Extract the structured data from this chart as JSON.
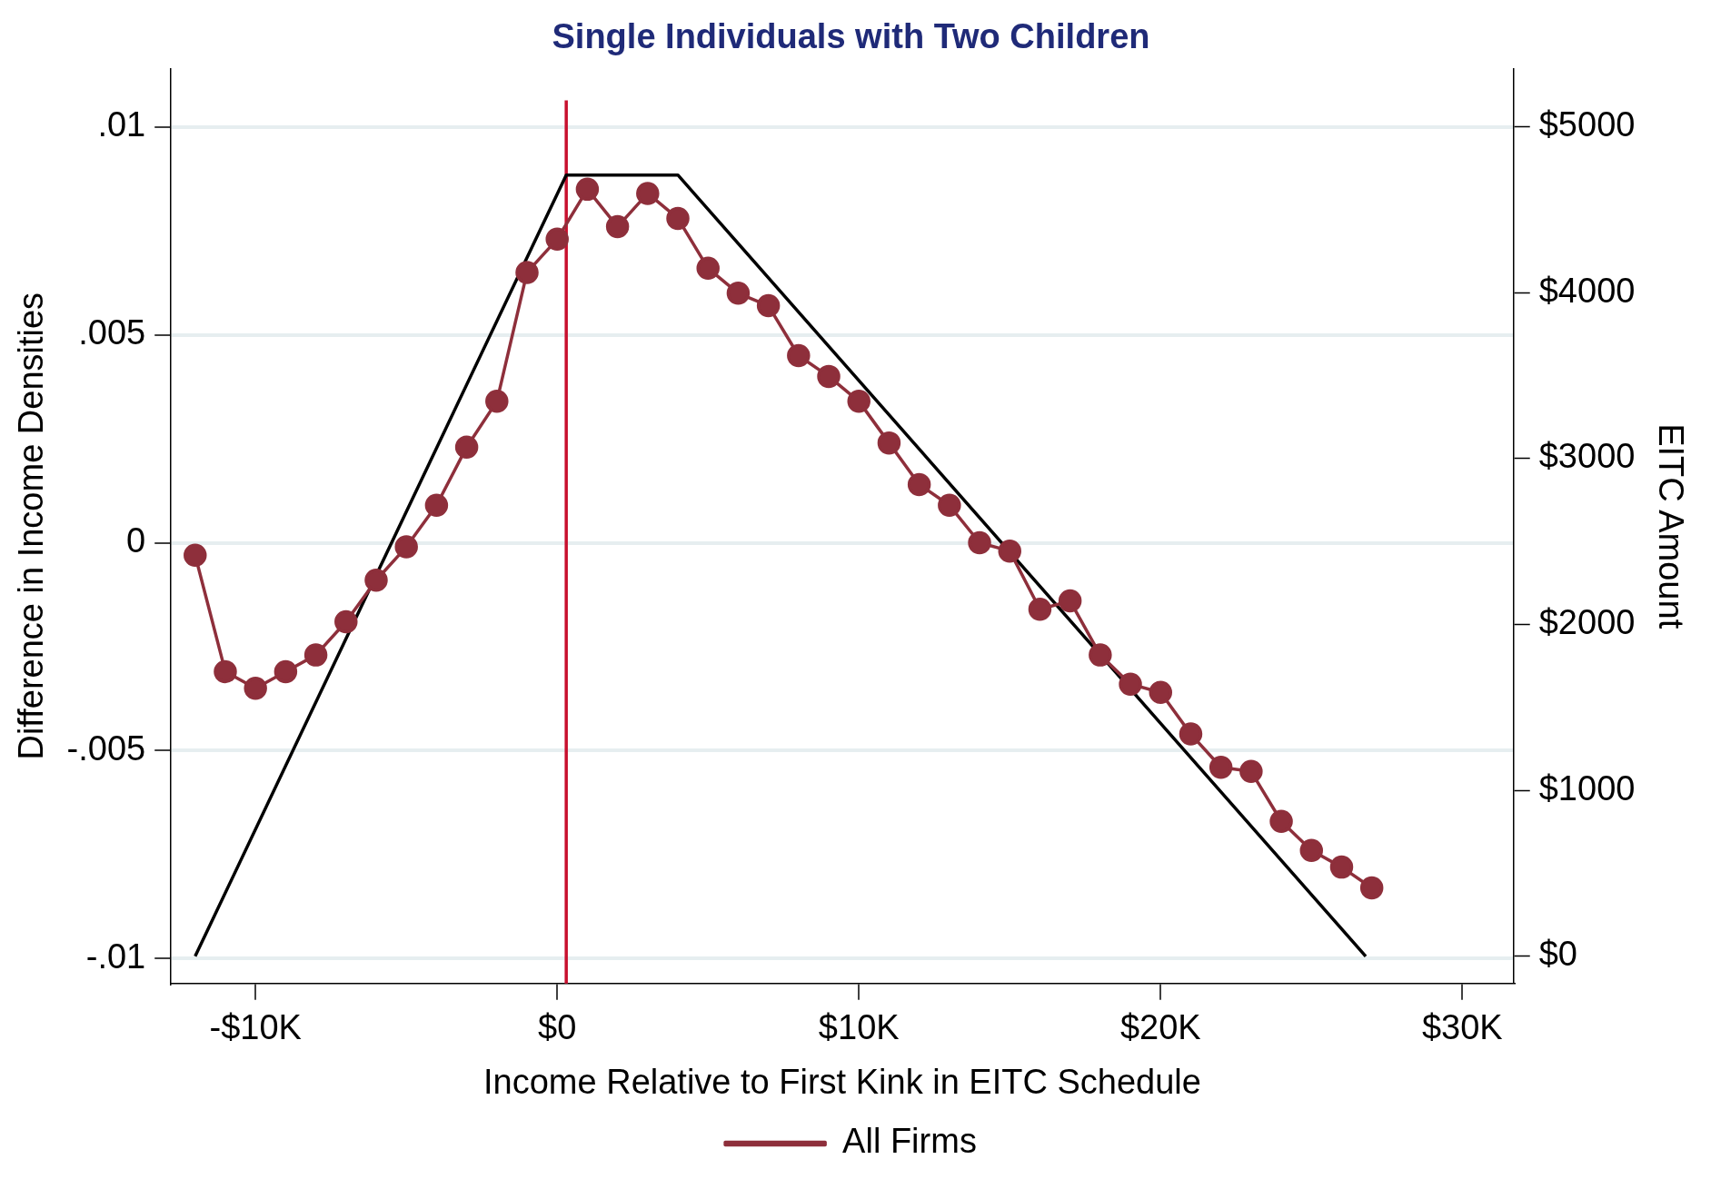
{
  "chart_data": {
    "type": "line",
    "title": "Single Individuals with Two Children",
    "xlabel": "Income Relative to First Kink in EITC Schedule",
    "ylabel": "Difference in Income Densities",
    "y2label": "EITC Amount",
    "xlim": [
      -12800,
      31700
    ],
    "xticks": [
      {
        "value": -10000,
        "label": "-$10K"
      },
      {
        "value": 0,
        "label": "$0"
      },
      {
        "value": 10000,
        "label": "$10K"
      },
      {
        "value": 20000,
        "label": "$20K"
      },
      {
        "value": 30000,
        "label": "$30K"
      }
    ],
    "ylim": [
      -0.0106,
      0.0114
    ],
    "yticks": [
      {
        "value": -0.01,
        "label": "-.01"
      },
      {
        "value": -0.005,
        "label": "-.005"
      },
      0,
      {
        "value": 0.005,
        "label": ".005"
      },
      {
        "value": 0.01,
        "label": ".01"
      }
    ],
    "y2lim": [
      -164,
      5351
    ],
    "y2ticks": [
      {
        "value": 0,
        "label": "$0"
      },
      {
        "value": 1000,
        "label": "$1000"
      },
      {
        "value": 2000,
        "label": "$2000"
      },
      {
        "value": 3000,
        "label": "$3000"
      },
      {
        "value": 4000,
        "label": "$4000"
      },
      {
        "value": 5000,
        "label": "$5000"
      }
    ],
    "series": [
      {
        "name": "All Firms",
        "color": "#8e2f3b",
        "marker": "circle",
        "x": [
          -12000,
          -11000,
          -10000,
          -9000,
          -8000,
          -7000,
          -6000,
          -5000,
          -4000,
          -3000,
          -2000,
          -1000,
          0,
          1000,
          2000,
          3000,
          4000,
          5000,
          6000,
          7000,
          8000,
          9000,
          10000,
          11000,
          12000,
          13000,
          14000,
          15000,
          16000,
          17000,
          18000,
          19000,
          20000,
          21000,
          22000,
          23000,
          24000,
          25000,
          26000,
          27000
        ],
        "values": [
          -0.0003,
          -0.0031,
          -0.0035,
          -0.0031,
          -0.0027,
          -0.0019,
          -0.0009,
          -0.0001,
          0.0009,
          0.0023,
          0.0034,
          0.0065,
          0.0073,
          0.0085,
          0.0076,
          0.0084,
          0.0078,
          0.0066,
          0.006,
          0.0057,
          0.0045,
          0.004,
          0.0034,
          0.0024,
          0.0014,
          0.0009,
          0,
          -0.0002,
          -0.0016,
          -0.0014,
          -0.0027,
          -0.0034,
          -0.0036,
          -0.0046,
          -0.0054,
          -0.0055,
          -0.0067,
          -0.0074,
          -0.0078,
          -0.0083
        ]
      },
      {
        "color": "#000000",
        "axis": "y2",
        "marker": "none",
        "x": [
          -12000,
          300,
          4000,
          26800
        ],
        "values": [
          0,
          4710,
          4710,
          0
        ]
      }
    ],
    "ref_lines": [
      {
        "axis": "x",
        "value": 300,
        "color": "#c8102e"
      }
    ],
    "grid": "y",
    "legend": "bottom",
    "line_style": "solid"
  }
}
